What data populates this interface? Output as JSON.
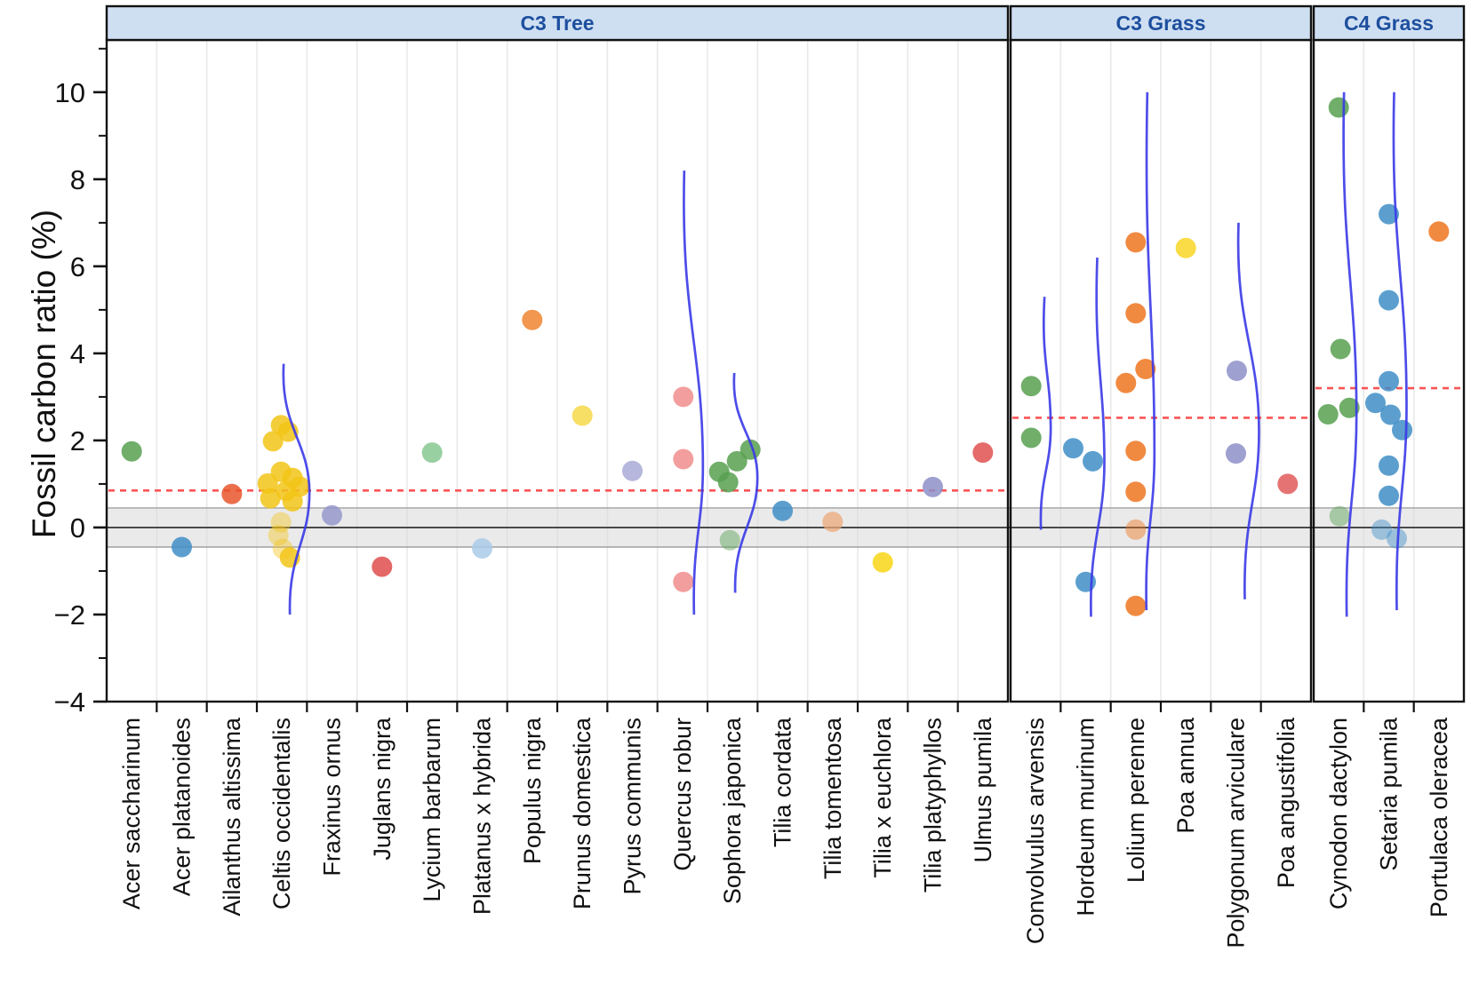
{
  "chart_data": {
    "type": "scatter",
    "title": "",
    "ylabel": "Fossil carbon ratio (%)",
    "ylim": [
      -4,
      11.2
    ],
    "grid": "vertical-only",
    "y_major_ticks": [
      {
        "v": 10,
        "label": "10"
      },
      {
        "v": 8,
        "label": "8"
      },
      {
        "v": 6,
        "label": "6"
      },
      {
        "v": 4,
        "label": "4"
      },
      {
        "v": 2,
        "label": "2"
      },
      {
        "v": 0,
        "label": "0"
      },
      {
        "v": -2,
        "label": "−2"
      },
      {
        "v": -4,
        "label": "−4"
      }
    ],
    "y_minor_ticks": [
      11,
      9,
      7,
      5,
      3,
      1,
      -1,
      -3
    ],
    "zero_band": {
      "from": -0.45,
      "to": 0.45,
      "zero_line": 0
    },
    "colors": {
      "curve_blue": "#3a3ae8",
      "mean_line_red": "#fa5555",
      "band_fill": "#d9d9d9",
      "band_edge": "#a0a0a0",
      "zero_line": "#4a4a4a",
      "header_bg": "#cfdff2",
      "header_text": "#1d4f9e",
      "grid": "#e9e9e9",
      "axis": "#111111"
    },
    "panels": [
      {
        "label": "C3 Tree",
        "mean_line": 0.85,
        "species": [
          {
            "name": "Acer saccharinum",
            "color": "#57a050",
            "points": [
              {
                "v": 1.75
              }
            ]
          },
          {
            "name": "Acer platanoides",
            "color": "#3f8ec7",
            "points": [
              {
                "v": -0.45
              }
            ]
          },
          {
            "name": "Ailanthus altissima",
            "color": "#e8562c",
            "points": [
              {
                "v": 0.77
              }
            ]
          },
          {
            "name": "Celtis occidentalis",
            "color": "#f2c417",
            "points": [
              {
                "v": 2.35,
                "dx": -1
              },
              {
                "v": 2.2,
                "dx": 7
              },
              {
                "v": 1.98,
                "dx": -10
              },
              {
                "v": 1.28,
                "dx": -1
              },
              {
                "v": 1.14,
                "dx": 12
              },
              {
                "v": 1.01,
                "dx": -16
              },
              {
                "v": 0.94,
                "dx": 20
              },
              {
                "v": 0.84,
                "dx": 5
              },
              {
                "v": 0.67,
                "dx": -13
              },
              {
                "v": 0.6,
                "dx": 12
              },
              {
                "v": 0.12,
                "dx": -1,
                "a": 0.42
              },
              {
                "v": -0.18,
                "dx": -4,
                "a": 0.42
              },
              {
                "v": -0.49,
                "dx": 1,
                "a": 0.42
              },
              {
                "v": -0.69,
                "dx": 9
              }
            ],
            "curve": {
              "top": 3.76,
              "top_dx": 2,
              "mode": 0.8,
              "mode_dx": 31,
              "bottom": -2.0,
              "bottom_dx": 9
            }
          },
          {
            "name": "Fraxinus ornus",
            "color": "#9193c9",
            "points": [
              {
                "v": 0.28,
                "a": 0.8
              }
            ]
          },
          {
            "name": "Juglans nigra",
            "color": "#df4d4d",
            "points": [
              {
                "v": -0.9
              }
            ]
          },
          {
            "name": "Lycium barbarum",
            "color": "#7fc48a",
            "points": [
              {
                "v": 1.72,
                "a": 0.8
              }
            ]
          },
          {
            "name": "Platanus x hybrida",
            "color": "#aacbe9",
            "points": [
              {
                "v": -0.48
              }
            ]
          },
          {
            "name": "Populus nigra",
            "color": "#ef8530",
            "points": [
              {
                "v": 4.77
              }
            ]
          },
          {
            "name": "Prunus domestica",
            "color": "#f6d84a",
            "points": [
              {
                "v": 2.57
              }
            ]
          },
          {
            "name": "Pyrus communis",
            "color": "#a8aad6",
            "points": [
              {
                "v": 1.3,
                "a": 0.85
              }
            ]
          },
          {
            "name": "Quercus robur",
            "color": "#f18d8d",
            "points": [
              {
                "v": 3.0,
                "dx": 1
              },
              {
                "v": 1.57,
                "dx": 1
              },
              {
                "v": -1.25,
                "dx": 1
              }
            ],
            "curve": {
              "top": 8.2,
              "top_dx": 2,
              "mode": 1.4,
              "mode_dx": 23,
              "bottom": -2.0,
              "bottom_dx": 13
            }
          },
          {
            "name": "Sophora japonica",
            "color": "#57a050",
            "points": [
              {
                "v": 1.79,
                "dx": 20
              },
              {
                "v": 1.52,
                "dx": 5
              },
              {
                "v": 1.28,
                "dx": -15
              },
              {
                "v": 1.04,
                "dx": -5
              },
              {
                "v": -0.29,
                "dx": -3,
                "a": 0.45
              }
            ],
            "curve": {
              "top": 3.55,
              "top_dx": 2,
              "mode": 1.15,
              "mode_dx": 28,
              "bottom": -1.5,
              "bottom_dx": 3
            }
          },
          {
            "name": "Tilia cordata",
            "color": "#3f8ec7",
            "points": [
              {
                "v": 0.38
              }
            ]
          },
          {
            "name": "Tilia tomentosa",
            "color": "#eca87a",
            "points": [
              {
                "v": 0.13,
                "a": 0.75
              }
            ]
          },
          {
            "name": "Tilia x euchlora",
            "color": "#f8d616",
            "points": [
              {
                "v": -0.8
              }
            ]
          },
          {
            "name": "Tilia platyphyllos",
            "color": "#8d8fc8",
            "points": [
              {
                "v": 0.93
              }
            ]
          },
          {
            "name": "Ulmus pumila",
            "color": "#e05050",
            "points": [
              {
                "v": 1.72
              }
            ]
          }
        ]
      },
      {
        "label": "C3 Grass",
        "mean_line": 2.52,
        "species": [
          {
            "name": "Convolvulus arvensis",
            "color": "#57a050",
            "points": [
              {
                "v": 3.25,
                "dx": -5
              },
              {
                "v": 2.06,
                "dx": -5
              }
            ],
            "curve": {
              "top": 5.3,
              "top_dx": 10,
              "mode": 2.3,
              "mode_dx": 17,
              "bottom": -0.05,
              "bottom_dx": 6
            }
          },
          {
            "name": "Hordeum murinum",
            "color": "#3f8ec7",
            "points": [
              {
                "v": 1.82,
                "dx": -14
              },
              {
                "v": 1.52,
                "dx": 8
              },
              {
                "v": -1.25,
                "dx": 0
              }
            ],
            "curve": {
              "top": 6.2,
              "top_dx": 13,
              "mode": 1.5,
              "mode_dx": 21,
              "bottom": -2.05,
              "bottom_dx": 6
            }
          },
          {
            "name": "Lolium perenne",
            "color": "#ee7520",
            "points": [
              {
                "v": 6.55,
                "dx": 0
              },
              {
                "v": 4.92,
                "dx": 0
              },
              {
                "v": 3.64,
                "dx": 11
              },
              {
                "v": 3.32,
                "dx": -11
              },
              {
                "v": 1.76,
                "dx": 0
              },
              {
                "v": 0.82,
                "dx": 0
              },
              {
                "v": -0.05,
                "dx": 0,
                "a": 0.45
              },
              {
                "v": -1.8,
                "dx": 0
              }
            ],
            "curve": {
              "top": 10.0,
              "top_dx": 13,
              "mode": 1.7,
              "mode_dx": 21,
              "bottom": -1.9,
              "bottom_dx": 12
            }
          },
          {
            "name": "Poa annua",
            "color": "#f8d626",
            "points": [
              {
                "v": 6.42
              }
            ]
          },
          {
            "name": "Polygonum arviculare",
            "color": "#8d8fc8",
            "points": [
              {
                "v": 3.6,
                "dx": 1
              },
              {
                "v": 1.7,
                "dx": 0
              }
            ],
            "curve": {
              "top": 7.0,
              "top_dx": 3,
              "mode": 2.2,
              "mode_dx": 26,
              "bottom": -1.65,
              "bottom_dx": 10
            }
          },
          {
            "name": "Poa angustifolia",
            "color": "#e25b5b",
            "points": [
              {
                "v": 1.0,
                "dx": 2
              }
            ]
          }
        ]
      },
      {
        "label": "C4 Grass",
        "mean_line": 3.2,
        "species": [
          {
            "name": "Cynodon dactylon",
            "color": "#57a050",
            "points": [
              {
                "v": 9.65,
                "dx": 0
              },
              {
                "v": 4.1,
                "dx": 2
              },
              {
                "v": 2.75,
                "dx": 12
              },
              {
                "v": 2.6,
                "dx": -12
              },
              {
                "v": 0.26,
                "dx": 1,
                "a": 0.45
              }
            ],
            "curve": {
              "top": 10.0,
              "top_dx": 6,
              "mode": 2.6,
              "mode_dx": 20,
              "bottom": -2.05,
              "bottom_dx": 9
            }
          },
          {
            "name": "Setaria pumila",
            "color": "#3f8ec7",
            "points": [
              {
                "v": 7.2,
                "dx": 0
              },
              {
                "v": 5.22,
                "dx": 0
              },
              {
                "v": 3.36,
                "dx": 0
              },
              {
                "v": 2.86,
                "dx": -15
              },
              {
                "v": 2.59,
                "dx": 2
              },
              {
                "v": 2.24,
                "dx": 15
              },
              {
                "v": 1.42,
                "dx": 0
              },
              {
                "v": 0.73,
                "dx": 0
              },
              {
                "v": -0.05,
                "dx": -8,
                "a": 0.45
              },
              {
                "v": -0.25,
                "dx": 9,
                "a": 0.45
              }
            ],
            "curve": {
              "top": 10.0,
              "top_dx": 6,
              "mode": 2.8,
              "mode_dx": 20,
              "bottom": -1.9,
              "bottom_dx": 9
            }
          },
          {
            "name": "Portulaca oleracea",
            "color": "#ee7520",
            "points": [
              {
                "v": 6.8
              }
            ]
          }
        ]
      }
    ]
  }
}
